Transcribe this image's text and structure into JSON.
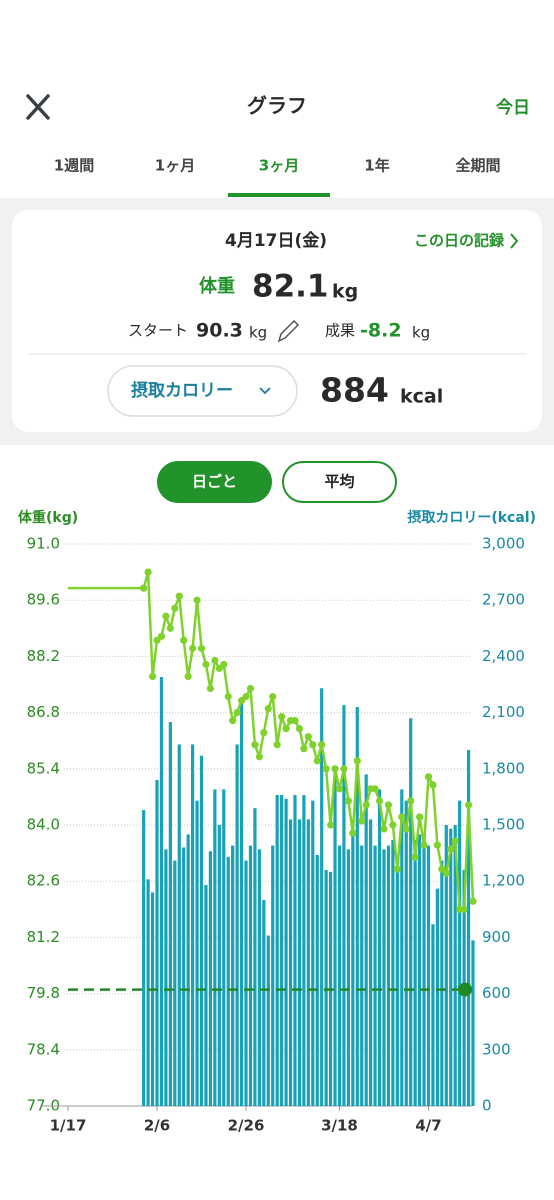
{
  "header": {
    "title": "グラフ",
    "today": "今日"
  },
  "tabs": {
    "items": [
      "1週間",
      "1ヶ月",
      "3ヶ月",
      "1年",
      "全期間"
    ],
    "active": 2
  },
  "summary": {
    "date": "4月17日(金)",
    "record_link": "この日の記録",
    "weight_label": "体重",
    "weight": 82.1,
    "weight_unit": "kg",
    "start_label": "スタート",
    "start": 90.3,
    "start_unit": "kg",
    "result_label": "成果",
    "result": -8.2,
    "result_unit": "kg",
    "metric_dropdown": "摂取カロリー",
    "calories": 884,
    "calories_unit": "kcal"
  },
  "toggle": {
    "items": [
      "日ごと",
      "平均"
    ],
    "active": 0
  },
  "chart_data": {
    "type": "bar_line",
    "y_label": "体重(kg)",
    "y2_label": "摂取カロリー(kcal)",
    "categories": [
      "1/17",
      null,
      null,
      null,
      null,
      null,
      null,
      null,
      null,
      null,
      null,
      null,
      null,
      null,
      null,
      null,
      null,
      null,
      null,
      null,
      "2/6",
      null,
      null,
      null,
      null,
      null,
      null,
      null,
      null,
      null,
      null,
      null,
      null,
      null,
      null,
      null,
      null,
      null,
      null,
      null,
      "2/26",
      null,
      null,
      null,
      null,
      null,
      null,
      null,
      null,
      null,
      null,
      null,
      null,
      null,
      null,
      null,
      null,
      null,
      null,
      null,
      null,
      "3/18",
      null,
      null,
      null,
      null,
      null,
      null,
      null,
      null,
      null,
      null,
      null,
      null,
      null,
      null,
      null,
      null,
      null,
      null,
      null,
      "4/7",
      null,
      null,
      null,
      null,
      null,
      null,
      null,
      null,
      null,
      null
    ],
    "ylim": [
      77,
      91
    ],
    "yticks": [
      {
        "value": 77,
        "label": "77.0"
      },
      78.4,
      79.8,
      81.2,
      82.6,
      {
        "value": 84,
        "label": "84.0"
      },
      85.4,
      86.8,
      88.2,
      89.6,
      {
        "value": 91,
        "label": "91.0"
      }
    ],
    "y2lim": [
      0,
      3000
    ],
    "y2ticks": [
      0,
      300,
      600,
      900,
      {
        "value": 1200,
        "label": "1,200"
      },
      {
        "value": 1500,
        "label": "1,500"
      },
      {
        "value": 1800,
        "label": "1,800"
      },
      {
        "value": 2100,
        "label": "2,100"
      },
      {
        "value": 2400,
        "label": "2,400"
      },
      {
        "value": 2700,
        "label": "2,700"
      },
      {
        "value": 3000,
        "label": "3,000"
      }
    ],
    "grid": true,
    "target": 79.9,
    "series": [
      {
        "type": "line",
        "color": "#7fd12b",
        "axis": "y",
        "values": [
          89.9,
          89.9,
          89.9,
          89.9,
          89.9,
          89.9,
          89.9,
          89.9,
          89.9,
          89.9,
          89.9,
          89.9,
          89.9,
          89.9,
          89.9,
          89.9,
          89.9,
          89.9,
          90.3,
          87.7,
          88.6,
          88.7,
          89.2,
          88.9,
          89.4,
          89.7,
          88.6,
          87.7,
          88.4,
          89.6,
          88.4,
          88.0,
          87.4,
          88.1,
          87.9,
          88.0,
          87.2,
          86.6,
          86.8,
          87.1,
          87.2,
          87.4,
          86.0,
          85.7,
          86.3,
          86.9,
          87.2,
          86.0,
          86.7,
          86.4,
          86.6,
          86.6,
          86.4,
          85.9,
          86.2,
          86.0,
          85.6,
          86.0,
          85.4,
          84.0,
          85.4,
          84.9,
          85.4,
          84.6,
          83.8,
          85.6,
          84.1,
          84.5,
          84.9,
          84.9,
          84.6,
          83.9,
          84.5,
          84.0,
          82.9,
          84.2,
          83.9,
          84.6,
          83.2,
          84.2,
          83.5,
          85.2,
          85.0,
          83.5,
          82.9,
          82.8,
          83.4,
          83.6,
          81.9,
          81.9,
          84.5,
          82.1
        ]
      },
      {
        "type": "bar",
        "color": "#17a2b8",
        "axis": "y2",
        "values": [
          null,
          null,
          null,
          null,
          null,
          null,
          null,
          null,
          null,
          null,
          null,
          null,
          null,
          null,
          null,
          null,
          null,
          1580,
          1210,
          1140,
          1740,
          2290,
          1370,
          2050,
          1310,
          1930,
          1380,
          1450,
          1930,
          1630,
          1870,
          1180,
          1360,
          1690,
          1500,
          1690,
          1330,
          1390,
          1930,
          2170,
          1310,
          1390,
          1590,
          1370,
          1100,
          910,
          1390,
          1660,
          1660,
          1640,
          1530,
          1660,
          1530,
          1660,
          1530,
          1630,
          1340,
          2230,
          1260,
          1250,
          1750,
          1390,
          2140,
          1370,
          1470,
          2130,
          1390,
          1770,
          1530,
          1390,
          1690,
          1370,
          1390,
          1420,
          1260,
          1690,
          1630,
          2070,
          1420,
          1450,
          1420,
          1390,
          970,
          1160,
          1310,
          1500,
          1480,
          1500,
          1630,
          1260,
          1900,
          884
        ]
      }
    ]
  }
}
